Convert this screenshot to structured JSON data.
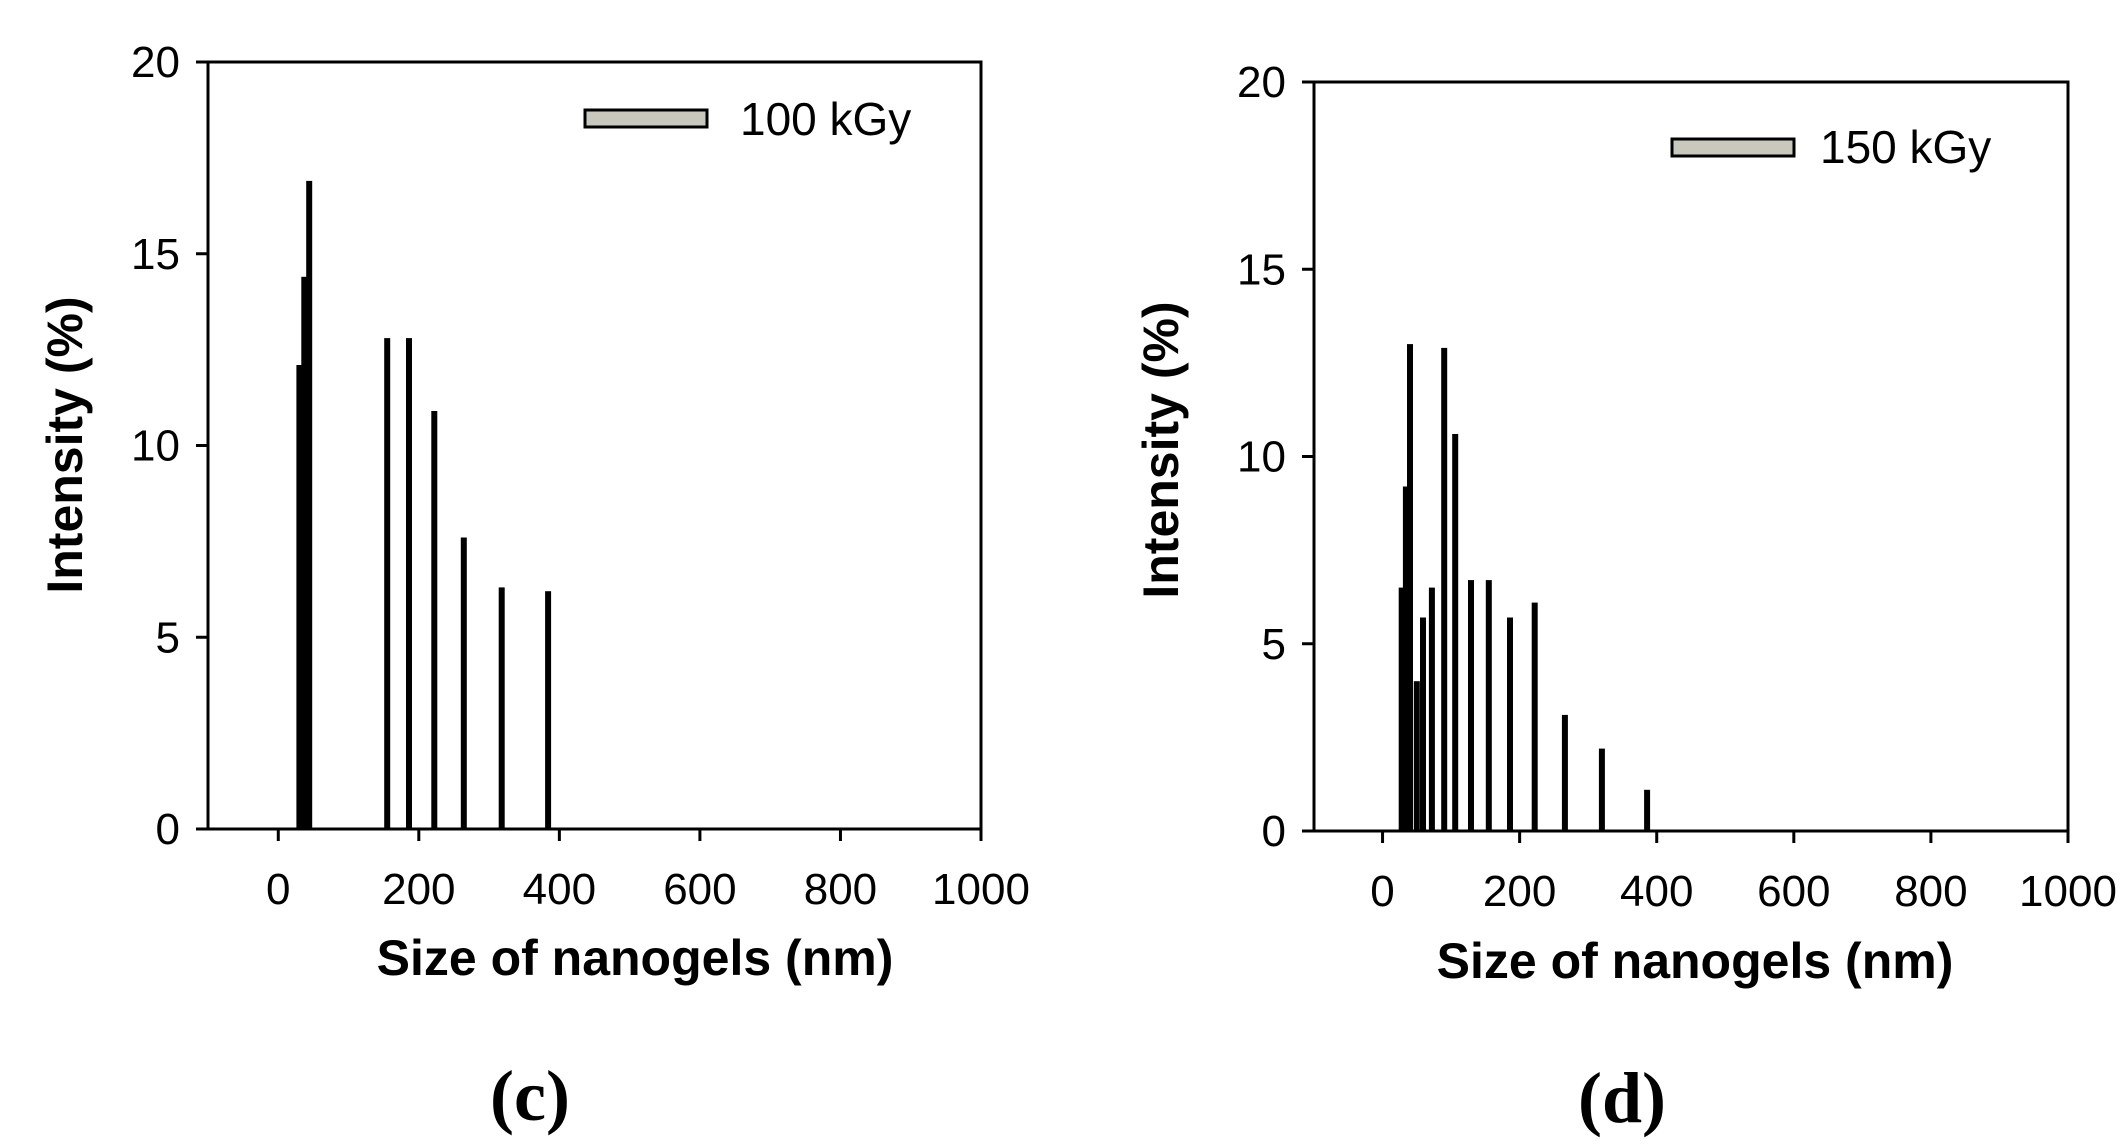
{
  "chart_data": [
    {
      "type": "bar",
      "panel_label": "(c)",
      "legend": "100 kGy",
      "legend_color": "#c8c8bd",
      "bar_color": "#000000",
      "xlabel": "Size of nanogels (nm)",
      "ylabel": "Intensity (%)",
      "xlim": [
        -100,
        1000
      ],
      "ylim": [
        0,
        20
      ],
      "xticks": [
        0,
        200,
        400,
        600,
        800,
        1000
      ],
      "yticks": [
        0,
        5,
        10,
        15,
        20
      ],
      "x": [
        30,
        37,
        44,
        155,
        186,
        222,
        264,
        318,
        384
      ],
      "values": [
        12.1,
        14.4,
        16.9,
        12.8,
        12.8,
        10.9,
        7.6,
        6.3,
        6.2
      ]
    },
    {
      "type": "bar",
      "panel_label": "(d)",
      "legend": "150 kGy",
      "legend_color": "#c8c8bd",
      "bar_color": "#000000",
      "xlabel": "Size of nanogels (nm)",
      "ylabel": "Intensity (%)",
      "xlim": [
        -100,
        1000
      ],
      "ylim": [
        0,
        20
      ],
      "xticks": [
        0,
        200,
        400,
        600,
        800,
        1000
      ],
      "yticks": [
        0,
        5,
        10,
        15,
        20
      ],
      "x": [
        28,
        34,
        40,
        50,
        59,
        72,
        90,
        106,
        129,
        155,
        186,
        222,
        266,
        320,
        386
      ],
      "values": [
        6.5,
        9.2,
        13.0,
        4.0,
        5.7,
        6.5,
        12.9,
        10.6,
        6.7,
        6.7,
        5.7,
        6.1,
        3.1,
        2.2,
        1.1
      ]
    }
  ]
}
